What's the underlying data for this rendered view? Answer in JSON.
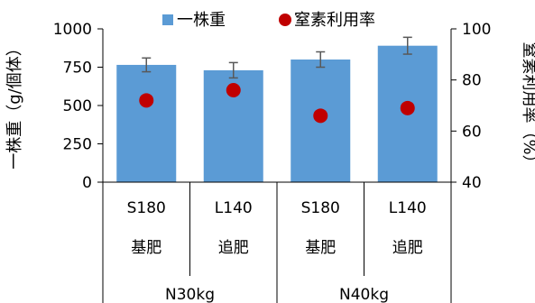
{
  "chart_data": {
    "type": "bar",
    "categories": [
      {
        "treatment": "S180",
        "fertilizer": "基肥",
        "group": "N30kg"
      },
      {
        "treatment": "L140",
        "fertilizer": "追肥",
        "group": "N30kg"
      },
      {
        "treatment": "S180",
        "fertilizer": "基肥",
        "group": "N40kg"
      },
      {
        "treatment": "L140",
        "fertilizer": "追肥",
        "group": "N40kg"
      }
    ],
    "groups": [
      "N30kg",
      "N40kg"
    ],
    "series": [
      {
        "name": "一株重",
        "axis": "left",
        "kind": "bar",
        "values": [
          765,
          730,
          800,
          890
        ],
        "error": [
          45,
          50,
          50,
          55
        ]
      },
      {
        "name": "窒素利用率",
        "axis": "right",
        "kind": "marker",
        "values": [
          72,
          76,
          66,
          69
        ]
      }
    ],
    "ylabel_left": "一株重（g/個体）",
    "ylabel_right": "窒素利用率（%）",
    "ylim_left": [
      0,
      1000
    ],
    "yticks_left": [
      0,
      250,
      500,
      750,
      1000
    ],
    "ylim_right": [
      40,
      100
    ],
    "yticks_right": [
      40,
      60,
      80,
      100
    ],
    "legend_position": "top",
    "grid": false,
    "colors": {
      "bar": "#5B9BD5",
      "marker": "#C00000",
      "error": "#595959",
      "axis": "#000000"
    }
  }
}
